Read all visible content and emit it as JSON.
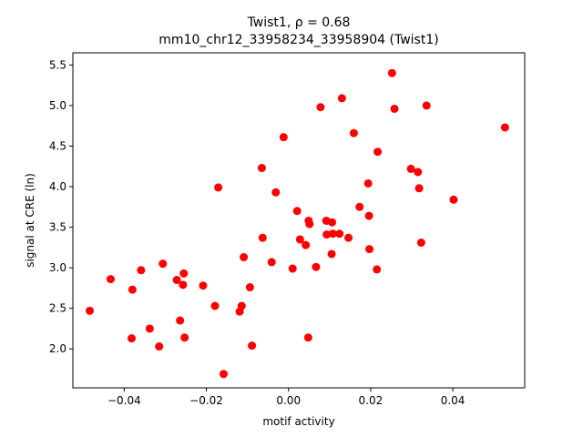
{
  "chart_data": {
    "type": "scatter",
    "title_line1": "Twist1, ρ = 0.68",
    "title_line2": "mm10_chr12_33958234_33958904 (Twist1)",
    "xlabel": "motif activity",
    "ylabel": "signal at CRE (ln)",
    "xlim": [
      -0.0525,
      0.0575
    ],
    "ylim": [
      1.52,
      5.65
    ],
    "xticks": [
      -0.04,
      -0.02,
      0.0,
      0.02,
      0.04
    ],
    "xtick_labels": [
      "−0.04",
      "−0.02",
      "0.00",
      "0.02",
      "0.04"
    ],
    "yticks": [
      2.0,
      2.5,
      3.0,
      3.5,
      4.0,
      4.5,
      5.0,
      5.5
    ],
    "ytick_labels": [
      "2.0",
      "2.5",
      "3.0",
      "3.5",
      "4.0",
      "4.5",
      "5.0",
      "5.5"
    ],
    "grid": false,
    "marker_color": "#ff0000",
    "x": [
      -0.0484,
      -0.0433,
      -0.0382,
      -0.038,
      -0.0359,
      -0.0338,
      -0.0315,
      -0.0306,
      -0.0272,
      -0.0264,
      -0.0257,
      -0.0255,
      -0.0253,
      -0.0208,
      -0.0179,
      -0.0171,
      -0.0158,
      -0.0119,
      -0.0114,
      -0.0109,
      -0.0094,
      -0.0089,
      -0.0065,
      -0.0063,
      -0.0041,
      -0.0031,
      -0.0012,
      0.001,
      0.0021,
      0.0028,
      0.0042,
      0.0048,
      0.0049,
      0.0051,
      0.0067,
      0.0078,
      0.0092,
      0.0093,
      0.0105,
      0.0106,
      0.0108,
      0.0124,
      0.013,
      0.0146,
      0.0159,
      0.0173,
      0.0194,
      0.0196,
      0.0197,
      0.0215,
      0.0217,
      0.0252,
      0.0258,
      0.0298,
      0.0315,
      0.0318,
      0.0323,
      0.0336,
      0.0402,
      0.0527
    ],
    "y": [
      2.47,
      2.86,
      2.13,
      2.73,
      2.97,
      2.25,
      2.03,
      3.05,
      2.85,
      2.35,
      2.79,
      2.93,
      2.14,
      2.78,
      2.53,
      3.99,
      1.69,
      2.46,
      2.53,
      3.13,
      2.76,
      2.04,
      4.23,
      3.37,
      3.07,
      3.93,
      4.61,
      2.99,
      3.7,
      3.35,
      3.28,
      2.14,
      3.58,
      3.54,
      3.01,
      4.98,
      3.58,
      3.41,
      3.17,
      3.56,
      3.42,
      3.42,
      5.09,
      3.37,
      4.66,
      3.75,
      4.04,
      3.64,
      3.23,
      2.98,
      4.43,
      5.4,
      4.96,
      4.22,
      4.18,
      3.98,
      3.31,
      5.0,
      3.84,
      4.73
    ]
  }
}
